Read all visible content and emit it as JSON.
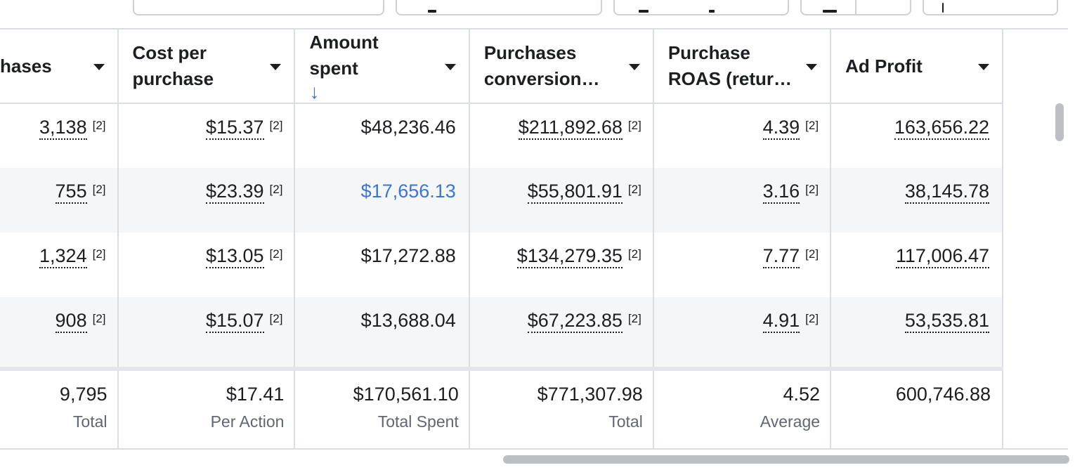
{
  "columns": [
    {
      "label": "hases",
      "sort": ""
    },
    {
      "label": "Cost per purchase",
      "sort": ""
    },
    {
      "label": "Amount spent",
      "sort": "↓"
    },
    {
      "label": "Purchases conversion…",
      "sort": ""
    },
    {
      "label": "Purchase ROAS (retur…",
      "sort": ""
    },
    {
      "label": "Ad Profit",
      "sort": ""
    }
  ],
  "rows": [
    {
      "purchases": "3,138",
      "cost": "$15.37",
      "spent": "$48,236.46",
      "conv": "$211,892.68",
      "roas": "4.39",
      "profit": "163,656.22"
    },
    {
      "purchases": "755",
      "cost": "$23.39",
      "spent": "$17,656.13",
      "conv": "$55,801.91",
      "roas": "3.16",
      "profit": "38,145.78"
    },
    {
      "purchases": "1,324",
      "cost": "$13.05",
      "spent": "$17,272.88",
      "conv": "$134,279.35",
      "roas": "7.77",
      "profit": "117,006.47"
    },
    {
      "purchases": "908",
      "cost": "$15.07",
      "spent": "$13,688.04",
      "conv": "$67,223.85",
      "roas": "4.91",
      "profit": "53,535.81"
    }
  ],
  "footnote": "[2]",
  "totals": [
    {
      "value": "9,795",
      "label": "Total"
    },
    {
      "value": "$17.41",
      "label": "Per Action"
    },
    {
      "value": "$170,561.10",
      "label": "Total Spent"
    },
    {
      "value": "$771,307.98",
      "label": "Total"
    },
    {
      "value": "4.52",
      "label": "Average"
    },
    {
      "value": "600,746.88",
      "label": ""
    }
  ],
  "colors": {
    "link": "#3b74d9",
    "border": "#dadde1",
    "alt_row": "#f5f6f7",
    "muted": "#606770"
  }
}
